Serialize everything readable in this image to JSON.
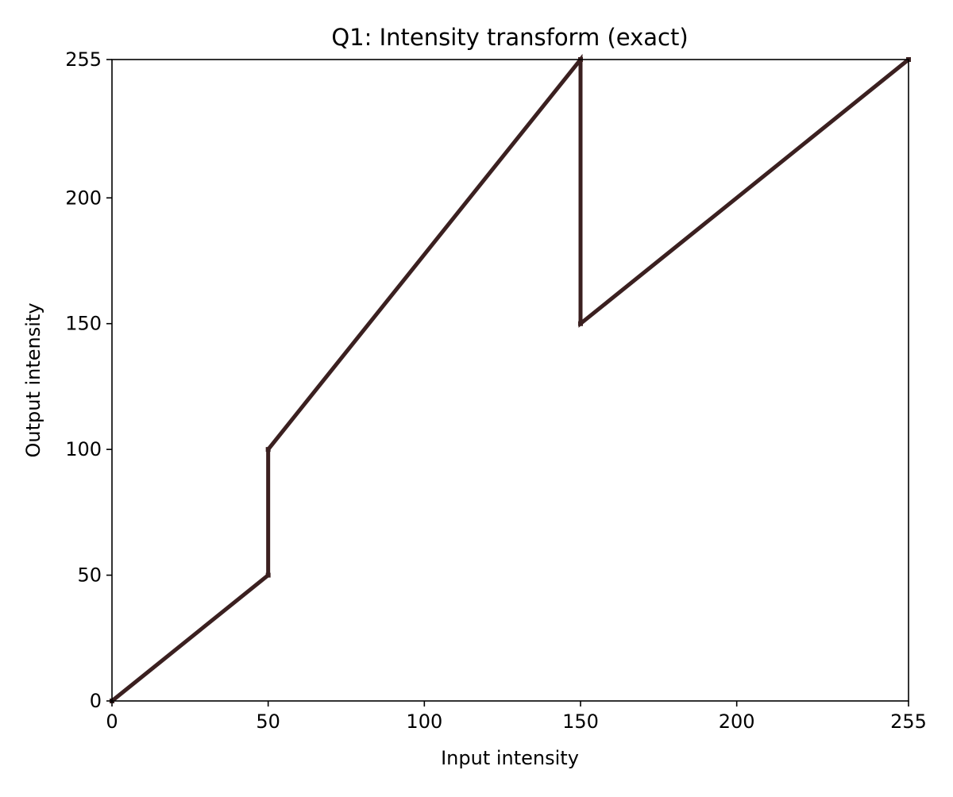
{
  "chart_data": {
    "type": "line",
    "title": "Q1: Intensity transform (exact)",
    "xlabel": "Input intensity",
    "ylabel": "Output intensity",
    "xlim": [
      0,
      255
    ],
    "ylim": [
      0,
      255
    ],
    "x_ticks": [
      0,
      50,
      100,
      150,
      200,
      255
    ],
    "y_ticks": [
      0,
      50,
      100,
      150,
      200,
      255
    ],
    "grid": false,
    "line_color": "#3b2020",
    "series": [
      {
        "points": [
          [
            0,
            0
          ],
          [
            50,
            50
          ],
          [
            50,
            100
          ],
          [
            150,
            255
          ],
          [
            150,
            150
          ],
          [
            255,
            255
          ]
        ]
      }
    ]
  }
}
